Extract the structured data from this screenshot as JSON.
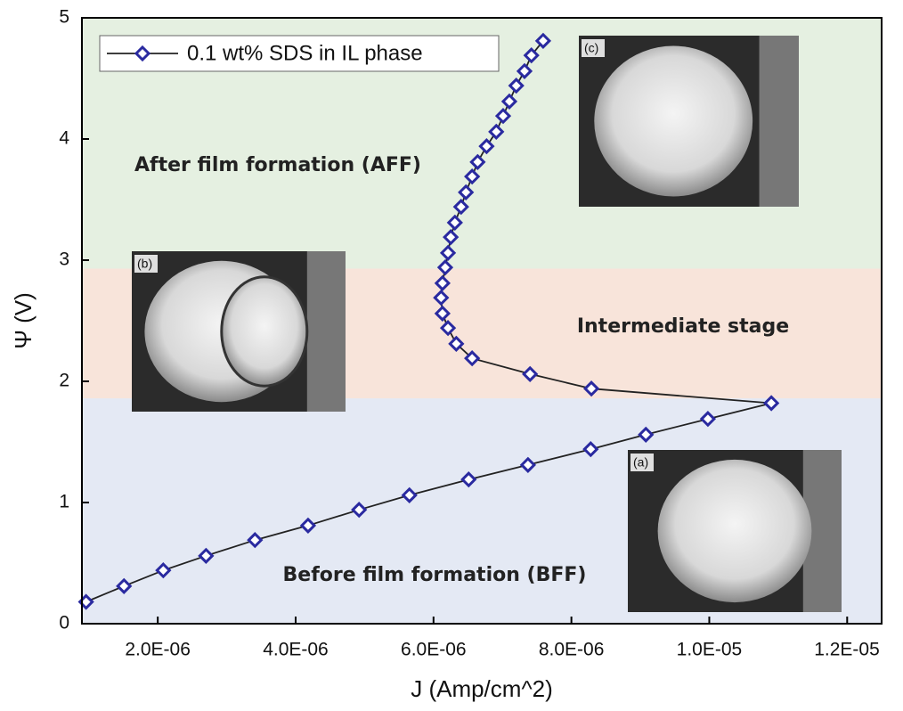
{
  "chart_data": {
    "type": "line",
    "x_label": "J (Amp/cm^2)",
    "y_label": "Ψ (V)",
    "xlim": [
      9e-07,
      1.25e-05
    ],
    "ylim": [
      0,
      5
    ],
    "xticks": [
      {
        "value": 2e-06,
        "label": "2.0E-06"
      },
      {
        "value": 4e-06,
        "label": "4.0E-06"
      },
      {
        "value": 6e-06,
        "label": "6.0E-06"
      },
      {
        "value": 8e-06,
        "label": "8.0E-06"
      },
      {
        "value": 1e-05,
        "label": "1.0E-05"
      },
      {
        "value": 1.2e-05,
        "label": "1.2E-05"
      }
    ],
    "yticks": [
      0,
      1,
      2,
      3,
      4,
      5
    ],
    "legend": "top-left",
    "bands": [
      {
        "from": 0,
        "to": 1.86,
        "color": "#e4e9f4",
        "label": "Before film formation (BFF)"
      },
      {
        "from": 1.86,
        "to": 2.93,
        "color": "#f8e4da",
        "label": "Intermediate stage"
      },
      {
        "from": 2.93,
        "to": 5,
        "color": "#e5f0e1",
        "label": "After film formation (AFF)"
      }
    ],
    "insets": [
      {
        "label": "(a)"
      },
      {
        "label": "(b)"
      },
      {
        "label": "(c)"
      }
    ],
    "series": [
      {
        "name": "0.1 wt% SDS in IL phase",
        "color": "#2a2aa0",
        "x": [
          9.6e-07,
          1.51e-06,
          2.08e-06,
          2.7e-06,
          3.41e-06,
          4.18e-06,
          4.92e-06,
          5.65e-06,
          6.51e-06,
          7.37e-06,
          8.28e-06,
          9.08e-06,
          9.98e-06,
          1.09e-05,
          8.29e-06,
          7.4e-06,
          6.56e-06,
          6.33e-06,
          6.21e-06,
          6.13e-06,
          6.11e-06,
          6.13e-06,
          6.17e-06,
          6.21e-06,
          6.25e-06,
          6.31e-06,
          6.4e-06,
          6.47e-06,
          6.56e-06,
          6.64e-06,
          6.77e-06,
          6.91e-06,
          7.01e-06,
          7.1e-06,
          7.2e-06,
          7.32e-06,
          7.42e-06,
          7.59e-06
        ],
        "values": [
          0.18,
          0.31,
          0.44,
          0.56,
          0.69,
          0.81,
          0.94,
          1.06,
          1.19,
          1.31,
          1.44,
          1.56,
          1.69,
          1.82,
          1.94,
          2.06,
          2.19,
          2.31,
          2.44,
          2.56,
          2.69,
          2.81,
          2.94,
          3.06,
          3.19,
          3.31,
          3.44,
          3.56,
          3.69,
          3.81,
          3.94,
          4.06,
          4.19,
          4.31,
          4.44,
          4.56,
          4.69,
          4.81
        ]
      }
    ]
  }
}
